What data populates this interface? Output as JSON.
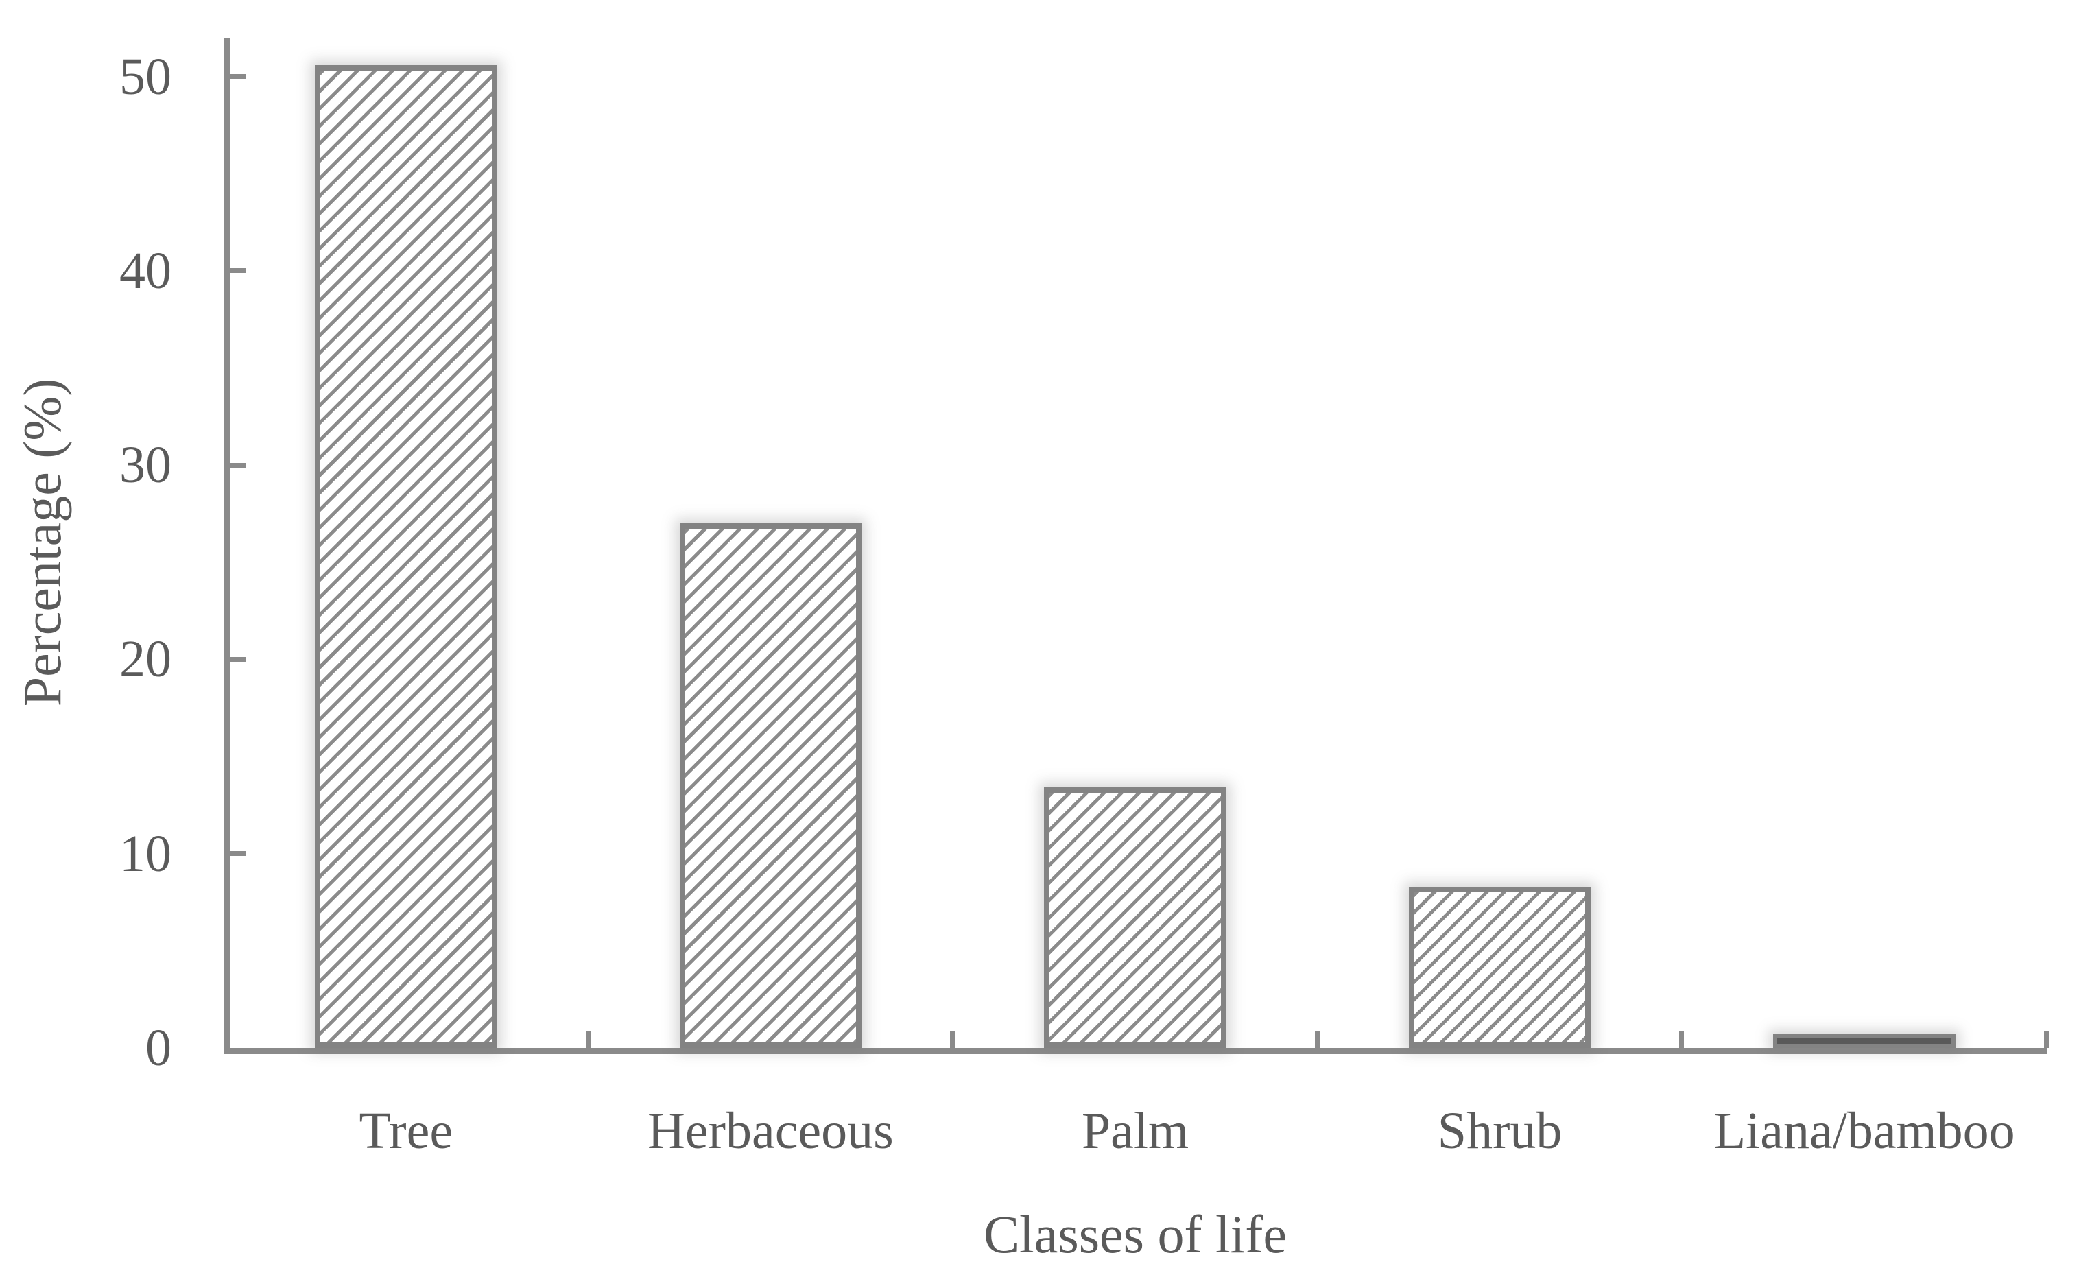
{
  "chart_data": {
    "type": "bar",
    "title": "",
    "xlabel": "Classes of life",
    "ylabel": "Percentage (%)",
    "categories": [
      "Tree",
      "Herbaceous",
      "Palm",
      "Shrub",
      "Liana/bamboo"
    ],
    "values": [
      50.6,
      27.0,
      13.4,
      8.3,
      0.7
    ],
    "bar_styles": [
      "hatched",
      "hatched",
      "hatched",
      "hatched",
      "solid"
    ],
    "yticks": [
      0,
      10,
      20,
      30,
      40,
      50
    ],
    "ylim": [
      0,
      52
    ],
    "grid": false,
    "legend": "none",
    "bar_fill_pattern": "diagonal-hatch",
    "colors": {
      "background": "#ffffff",
      "axis": "#8a8a8a",
      "bar_outline": "#838383",
      "hatch_line": "#8b8b8b",
      "solid_bar_fill": "#595959",
      "text": "#5a5a5a"
    }
  }
}
